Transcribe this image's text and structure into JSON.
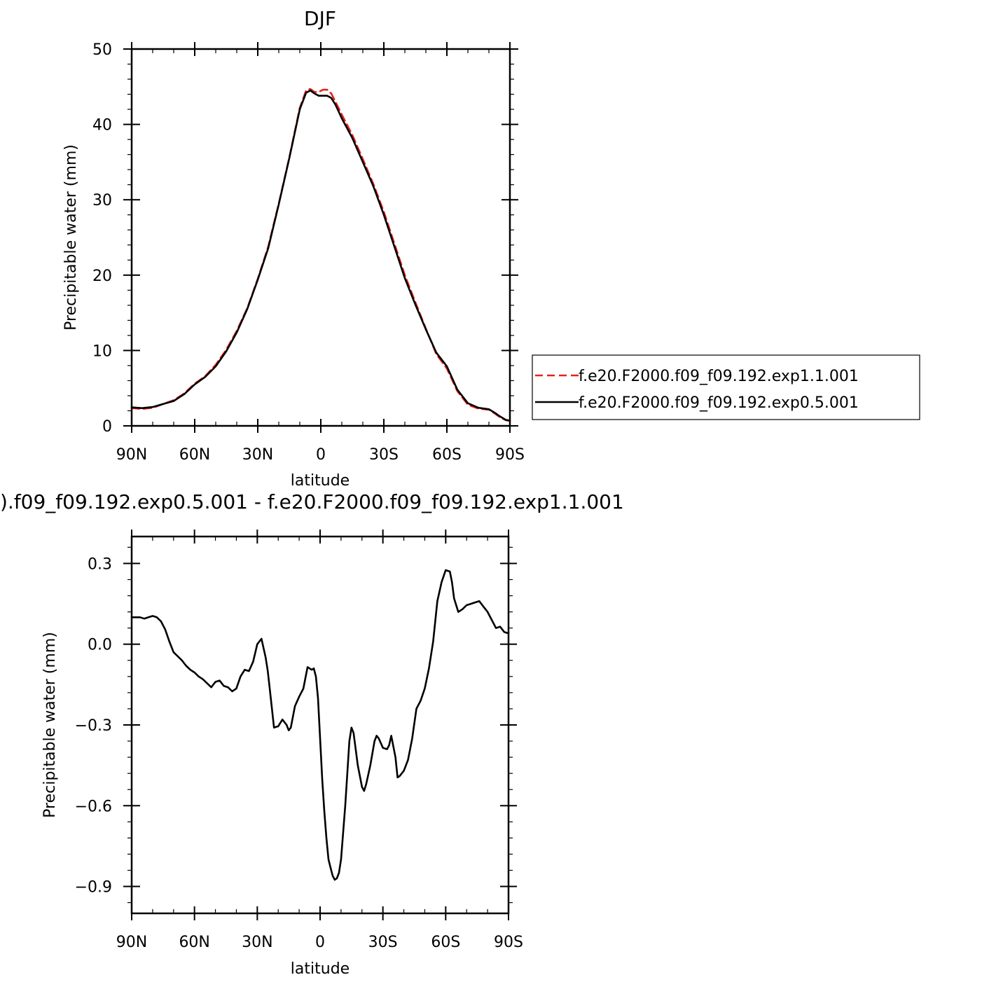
{
  "chart_data": [
    {
      "type": "line",
      "title": "DJF",
      "xlabel": "latitude",
      "ylabel": "Precipitable water (mm)",
      "xlim": [
        -90,
        90
      ],
      "ylim": [
        0,
        50
      ],
      "x_ticks": [
        -90,
        -60,
        -30,
        0,
        30,
        60,
        90
      ],
      "x_tick_labels": [
        "90N",
        "60N",
        "30N",
        "0",
        "30S",
        "60S",
        "90S"
      ],
      "y_ticks": [
        0,
        10,
        20,
        30,
        40,
        50
      ],
      "y_tick_labels": [
        "0",
        "10",
        "20",
        "30",
        "40",
        "50"
      ],
      "grid": false,
      "legend_position": "right",
      "series": [
        {
          "name": "f.e20.F2000.f09_f09.192.exp1.1.001",
          "color": "#e8211e",
          "dash": "dashed",
          "x": [
            -90,
            -85,
            -80,
            -75,
            -70,
            -65,
            -60,
            -55,
            -50,
            -45,
            -40,
            -35,
            -30,
            -25,
            -20,
            -15,
            -10,
            -7,
            -5,
            -3,
            -1,
            1,
            3,
            5,
            7,
            10,
            15,
            20,
            25,
            30,
            35,
            40,
            45,
            50,
            55,
            60,
            65,
            70,
            75,
            80,
            83,
            85,
            88,
            90
          ],
          "y": [
            2.35,
            2.25,
            2.4,
            2.9,
            3.4,
            4.3,
            5.6,
            6.6,
            8.1,
            10.1,
            12.6,
            15.6,
            19.5,
            23.8,
            29.5,
            35.6,
            42.2,
            44.5,
            44.7,
            44.3,
            44.3,
            44.6,
            44.6,
            44.1,
            43.0,
            41.3,
            38.6,
            35.4,
            32.1,
            28.4,
            24.2,
            20.0,
            16.4,
            12.9,
            9.5,
            7.6,
            4.6,
            2.8,
            2.3,
            2.15,
            1.6,
            1.2,
            0.75,
            0.65
          ]
        },
        {
          "name": "f.e20.F2000.f09_f09.192.exp0.5.001",
          "color": "#000000",
          "dash": "solid",
          "x": [
            -90,
            -85,
            -80,
            -75,
            -70,
            -65,
            -60,
            -55,
            -50,
            -45,
            -40,
            -35,
            -30,
            -25,
            -20,
            -15,
            -10,
            -7,
            -5,
            -3,
            -1,
            1,
            3,
            5,
            7,
            10,
            15,
            20,
            25,
            30,
            35,
            40,
            45,
            50,
            55,
            60,
            65,
            70,
            75,
            80,
            83,
            85,
            88,
            90
          ],
          "y": [
            2.45,
            2.35,
            2.5,
            2.9,
            3.3,
            4.2,
            5.5,
            6.5,
            7.9,
            9.9,
            12.4,
            15.5,
            19.4,
            23.6,
            29.4,
            35.5,
            42.0,
            44.2,
            44.5,
            44.1,
            43.8,
            43.8,
            43.8,
            43.5,
            42.6,
            40.8,
            38.2,
            35.0,
            31.8,
            28.0,
            23.8,
            19.6,
            16.1,
            12.8,
            9.7,
            7.9,
            4.8,
            3.0,
            2.4,
            2.2,
            1.7,
            1.3,
            0.8,
            0.7
          ]
        }
      ]
    },
    {
      "type": "line",
      "title": ").f09_f09.192.exp0.5.001 - f.e20.F2000.f09_f09.192.exp1.1.001",
      "xlabel": "latitude",
      "ylabel": "Precipitable water (mm)",
      "xlim": [
        -90,
        90
      ],
      "ylim": [
        -1.0,
        0.4
      ],
      "x_ticks": [
        -90,
        -60,
        -30,
        0,
        30,
        60,
        90
      ],
      "x_tick_labels": [
        "90N",
        "60N",
        "30N",
        "0",
        "30S",
        "60S",
        "90S"
      ],
      "y_ticks": [
        -0.9,
        -0.6,
        -0.3,
        0.0,
        0.3
      ],
      "y_tick_labels": [
        "−0.9",
        "−0.6",
        "−0.3",
        "0.0",
        "0.3"
      ],
      "grid": false,
      "series": [
        {
          "color": "#000000",
          "dash": "solid",
          "x": [
            -90,
            -88,
            -86,
            -84,
            -82,
            -80,
            -78,
            -76,
            -74,
            -72,
            -70,
            -68,
            -66,
            -64,
            -62,
            -60,
            -58,
            -56,
            -54,
            -52,
            -50,
            -48,
            -46,
            -44,
            -42,
            -40,
            -38,
            -36,
            -34,
            -32,
            -30,
            -28,
            -26,
            -25,
            -24,
            -22,
            -20,
            -18,
            -16,
            -15,
            -14,
            -12,
            -10,
            -8,
            -6,
            -5,
            -4,
            -3,
            -2,
            -1,
            0,
            1,
            2,
            3,
            4,
            5,
            6,
            7,
            8,
            9,
            10,
            12,
            14,
            15,
            16,
            18,
            20,
            21,
            22,
            24,
            26,
            27,
            28,
            30,
            32,
            33,
            34,
            36,
            37,
            38,
            40,
            42,
            44,
            46,
            48,
            50,
            52,
            54,
            56,
            57,
            58,
            60,
            62,
            63,
            64,
            66,
            68,
            70,
            72,
            74,
            76,
            78,
            80,
            82,
            84,
            86,
            88,
            90
          ],
          "y": [
            0.1,
            0.1,
            0.1,
            0.095,
            0.1,
            0.105,
            0.1,
            0.085,
            0.055,
            0.01,
            -0.03,
            -0.045,
            -0.06,
            -0.08,
            -0.095,
            -0.105,
            -0.12,
            -0.13,
            -0.145,
            -0.16,
            -0.14,
            -0.135,
            -0.155,
            -0.16,
            -0.175,
            -0.165,
            -0.12,
            -0.095,
            -0.1,
            -0.065,
            0.0,
            0.02,
            -0.05,
            -0.1,
            -0.17,
            -0.31,
            -0.305,
            -0.28,
            -0.3,
            -0.32,
            -0.31,
            -0.23,
            -0.195,
            -0.165,
            -0.085,
            -0.09,
            -0.095,
            -0.09,
            -0.12,
            -0.2,
            -0.35,
            -0.5,
            -0.62,
            -0.72,
            -0.8,
            -0.83,
            -0.86,
            -0.875,
            -0.87,
            -0.85,
            -0.8,
            -0.6,
            -0.36,
            -0.31,
            -0.33,
            -0.45,
            -0.53,
            -0.545,
            -0.52,
            -0.45,
            -0.36,
            -0.34,
            -0.35,
            -0.385,
            -0.39,
            -0.375,
            -0.34,
            -0.42,
            -0.495,
            -0.49,
            -0.47,
            -0.43,
            -0.35,
            -0.24,
            -0.21,
            -0.165,
            -0.09,
            0.01,
            0.16,
            0.195,
            0.23,
            0.275,
            0.27,
            0.23,
            0.17,
            0.12,
            0.13,
            0.145,
            0.15,
            0.155,
            0.16,
            0.14,
            0.12,
            0.09,
            0.06,
            0.065,
            0.045,
            0.04
          ]
        }
      ]
    }
  ]
}
